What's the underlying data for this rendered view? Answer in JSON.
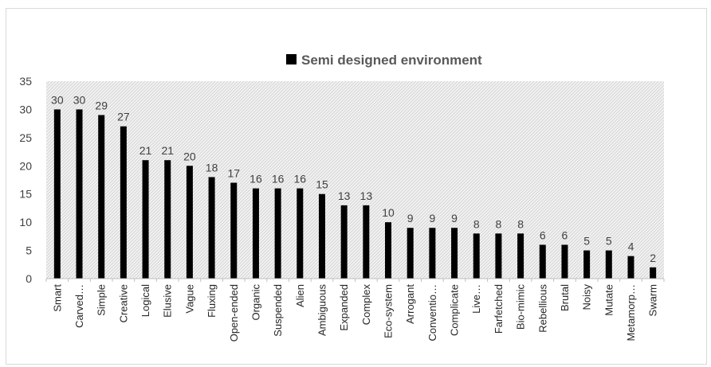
{
  "chart_data": {
    "type": "bar",
    "title": "",
    "xlabel": "",
    "ylabel": "",
    "ylim": [
      0,
      35
    ],
    "yticks": [
      0,
      5,
      10,
      15,
      20,
      25,
      30,
      35
    ],
    "grid": false,
    "legend_position": "top",
    "categories": [
      "Smart",
      "Carved…",
      "Simple",
      "Creative",
      "Logical",
      "Elusive",
      "Vague",
      "Fluxing",
      "Open-ended",
      "Organic",
      "Suspended",
      "Alien",
      "Ambiguous",
      "Expanded",
      "Complex",
      "Eco-system",
      "Arrogant",
      "Conventio…",
      "Complicate",
      "Live…",
      "Farfetched",
      "Bio-mimic",
      "Rebellious",
      "Brutal",
      "Noisy",
      "Mutate",
      "Metamorp…",
      "Swarm"
    ],
    "series": [
      {
        "name": "Semi designed environment",
        "color": "#000000",
        "values": [
          30,
          30,
          29,
          27,
          21,
          21,
          20,
          18,
          17,
          16,
          16,
          16,
          15,
          13,
          13,
          10,
          9,
          9,
          9,
          8,
          8,
          8,
          6,
          6,
          5,
          5,
          4,
          2
        ]
      }
    ],
    "plot_background": "hatched light gray"
  }
}
